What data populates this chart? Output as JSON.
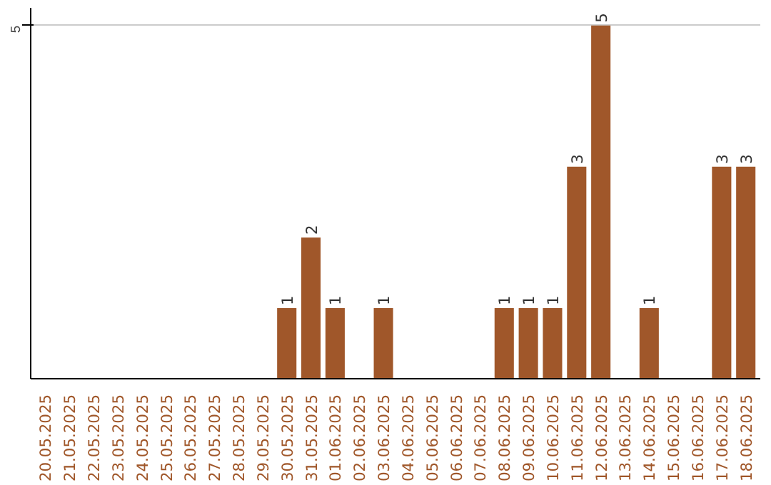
{
  "chart_data": {
    "type": "bar",
    "categories": [
      "20.05.2025",
      "21.05.2025",
      "22.05.2025",
      "23.05.2025",
      "24.05.2025",
      "25.05.2025",
      "26.05.2025",
      "27.05.2025",
      "28.05.2025",
      "29.05.2025",
      "30.05.2025",
      "31.05.2025",
      "01.06.2025",
      "02.06.2025",
      "03.06.2025",
      "04.06.2025",
      "05.06.2025",
      "06.06.2025",
      "07.06.2025",
      "08.06.2025",
      "09.06.2025",
      "10.06.2025",
      "11.06.2025",
      "12.06.2025",
      "13.06.2025",
      "14.06.2025",
      "15.06.2025",
      "16.06.2025",
      "17.06.2025",
      "18.06.2025"
    ],
    "values": [
      0,
      0,
      0,
      0,
      0,
      0,
      0,
      0,
      0,
      0,
      1,
      2,
      1,
      0,
      1,
      0,
      0,
      0,
      0,
      1,
      1,
      1,
      3,
      5,
      0,
      1,
      0,
      0,
      3,
      3
    ],
    "value_labels": [
      null,
      null,
      null,
      null,
      null,
      null,
      null,
      null,
      null,
      null,
      "1",
      "2",
      "1",
      null,
      "1",
      null,
      null,
      null,
      null,
      "1",
      "1",
      "1",
      "3",
      "5",
      null,
      "1",
      null,
      null,
      "3",
      "3"
    ],
    "color": "#a0572a",
    "ylim": [
      0,
      5.25
    ],
    "yticks": [
      5
    ],
    "grid": "y"
  }
}
